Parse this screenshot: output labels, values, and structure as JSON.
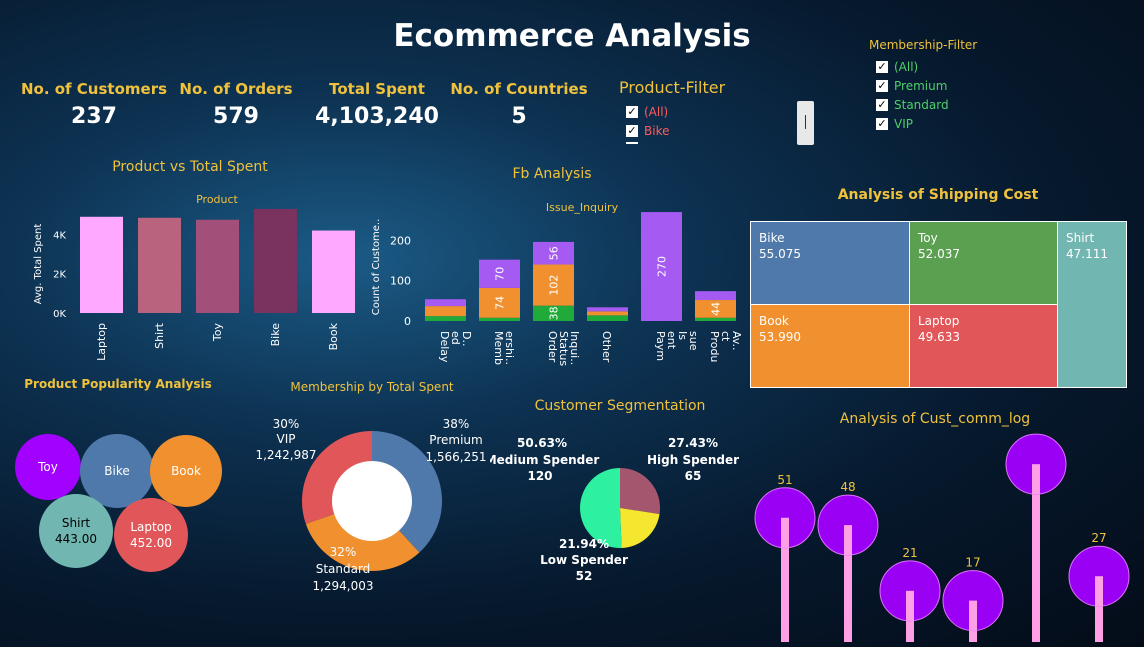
{
  "title": "Ecommerce Analysis",
  "kpis": [
    {
      "label": "No. of Customers",
      "value": "237"
    },
    {
      "label": "No. of Orders",
      "value": "579"
    },
    {
      "label": "Total Spent",
      "value": "4,103,240"
    },
    {
      "label": "No. of Countries",
      "value": "5"
    }
  ],
  "product_filter": {
    "title": "Product-Filter",
    "options": [
      "(All)",
      "Bike"
    ],
    "checked": [
      true,
      true
    ],
    "color": "#ff5a5a"
  },
  "membership_filter": {
    "title": "Membership-Filter",
    "options": [
      "(All)",
      "Premium",
      "Standard",
      "VIP"
    ],
    "checked": [
      true,
      true,
      true,
      true
    ],
    "color": "#4dd06a"
  },
  "sections": {
    "product_vs_spent": "Product vs Total Spent",
    "product_popularity": "Product Popularity Analysis",
    "membership_by_spent": "Membership by Total Spent",
    "fb_analysis": "Fb Analysis",
    "customer_segmentation": "Customer Segmentation",
    "shipping": "Analysis of Shipping Cost",
    "comm_log": "Analysis of Cust_comm_log"
  },
  "chart_data": [
    {
      "type": "bar",
      "title": "Product vs Total Spent",
      "xlabel": "Product",
      "ylabel": "Avg. Total Spent",
      "categories": [
        "Laptop",
        "Shirt",
        "Toy",
        "Bike",
        "Book"
      ],
      "values": [
        4900,
        4850,
        4750,
        5300,
        4200
      ],
      "ylim": [
        0,
        5500
      ],
      "ticks": [
        {
          "v": 0,
          "t": "0K"
        },
        {
          "v": 2000,
          "t": "2K"
        },
        {
          "v": 4000,
          "t": "4K"
        }
      ],
      "colors": [
        "#ffa8ff",
        "#b9637f",
        "#a24f7a",
        "#7a325e",
        "#ffa8ff"
      ]
    },
    {
      "type": "bar",
      "title": "Fb Analysis",
      "xlabel": "Issue_Inquiry",
      "ylabel": "Count of Custome..",
      "categories": [
        "Delay ed D..",
        "Memb ershi..",
        "Order Status Inqui..",
        "Other",
        "Paym ent Is sue",
        "Produ ct Av.."
      ],
      "series": [
        {
          "values": [
            12,
            8,
            38,
            14,
            0,
            8
          ],
          "color": "#1faa3a"
        },
        {
          "values": [
            25,
            74,
            102,
            10,
            0,
            44
          ],
          "color": "#f0902e"
        },
        {
          "values": [
            17,
            70,
            56,
            10,
            270,
            22
          ],
          "color": "#a55af2"
        }
      ],
      "labels": [
        {
          "cat": 1,
          "series": 1,
          "text": "74"
        },
        {
          "cat": 1,
          "series": 2,
          "text": "70"
        },
        {
          "cat": 2,
          "series": 0,
          "text": "38"
        },
        {
          "cat": 2,
          "series": 1,
          "text": "102"
        },
        {
          "cat": 2,
          "series": 2,
          "text": "56"
        },
        {
          "cat": 4,
          "series": 2,
          "text": "270"
        },
        {
          "cat": 5,
          "series": 1,
          "text": "44"
        }
      ],
      "ylim": [
        0,
        290
      ],
      "ticks": [
        0,
        100,
        200
      ]
    },
    {
      "type": "treemap",
      "title": "Analysis of Shipping Cost",
      "items": [
        {
          "name": "Bike",
          "value": "55.075",
          "color": "#4f79aa"
        },
        {
          "name": "Toy",
          "value": "52.037",
          "color": "#5aa050"
        },
        {
          "name": "Shirt",
          "value": "47.111",
          "color": "#72b6b2"
        },
        {
          "name": "Book",
          "value": "53.990",
          "color": "#f0902e"
        },
        {
          "name": "Laptop",
          "value": "49.633",
          "color": "#e15759"
        }
      ]
    },
    {
      "type": "bubble",
      "title": "Product Popularity Analysis",
      "items": [
        {
          "name": "Toy",
          "value": "",
          "color": "#a200ff",
          "text": "#ffffff"
        },
        {
          "name": "Bike",
          "value": "",
          "color": "#4f79aa",
          "text": "#ffffff"
        },
        {
          "name": "Book",
          "value": "",
          "color": "#f0902e",
          "text": "#ffffff"
        },
        {
          "name": "Shirt",
          "value": "443.00",
          "color": "#72b6b2",
          "text": "#000000"
        },
        {
          "name": "Laptop",
          "value": "452.00",
          "color": "#e15759",
          "text": "#ffffff"
        }
      ]
    },
    {
      "type": "pie",
      "title": "Membership by Total Spent",
      "donut": true,
      "slices": [
        {
          "name": "Premium",
          "pct": "38%",
          "value": 1566251,
          "label": "1,566,251",
          "color": "#4f79aa"
        },
        {
          "name": "Standard",
          "pct": "32%",
          "value": 1294003,
          "label": "1,294,003",
          "color": "#f0902e"
        },
        {
          "name": "VIP",
          "pct": "30%",
          "value": 1242987,
          "label": "1,242,987",
          "color": "#e15759"
        }
      ]
    },
    {
      "type": "pie",
      "title": "Customer Segmentation",
      "slices": [
        {
          "name": "High Spender",
          "pct": "27.43%",
          "value": 65,
          "color": "#a5566f"
        },
        {
          "name": "Low Spender",
          "pct": "21.94%",
          "value": 52,
          "color": "#f5e630"
        },
        {
          "name": "Medium Spender",
          "pct": "50.63%",
          "value": 120,
          "color": "#2df0a0"
        }
      ]
    },
    {
      "type": "lollipop",
      "title": "Analysis of Cust_comm_log",
      "values": [
        51,
        48,
        21,
        17,
        73,
        27
      ],
      "ylim": [
        0,
        78
      ]
    }
  ]
}
